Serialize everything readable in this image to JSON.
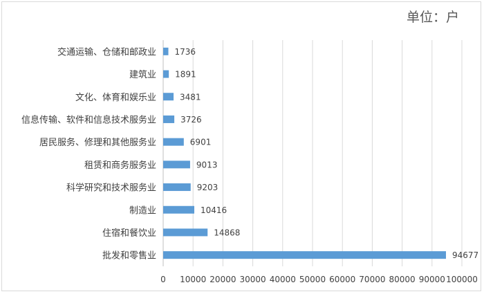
{
  "chart_data": {
    "type": "bar",
    "orientation": "horizontal",
    "unit_label": "单位：户",
    "categories": [
      "交通运输、仓储和邮政业",
      "建筑业",
      "文化、体育和娱乐业",
      "信息传输、软件和信息技术服务业",
      "居民服务、修理和其他服务业",
      "租赁和商务服务业",
      "科学研究和技术服务业",
      "制造业",
      "住宿和餐饮业",
      "批发和零售业"
    ],
    "values": [
      1736,
      1891,
      3481,
      3726,
      6901,
      9013,
      9203,
      10416,
      14868,
      94677
    ],
    "value_labels": [
      "1736",
      "1891",
      "3481",
      "3726",
      "6901",
      "9013",
      "9203",
      "10416",
      "14868",
      "94677"
    ],
    "xlim": [
      0,
      100000
    ],
    "x_ticks": [
      0,
      10000,
      20000,
      30000,
      40000,
      50000,
      60000,
      70000,
      80000,
      90000,
      100000
    ],
    "x_tick_labels": [
      "0",
      "10000",
      "20000",
      "30000",
      "40000",
      "50000",
      "60000",
      "70000",
      "80000",
      "90000",
      "100000"
    ],
    "grid": "vertical",
    "bar_color": "#5b9bd5",
    "grid_color": "#d9d9d9",
    "title": "",
    "xlabel": "",
    "ylabel": ""
  }
}
